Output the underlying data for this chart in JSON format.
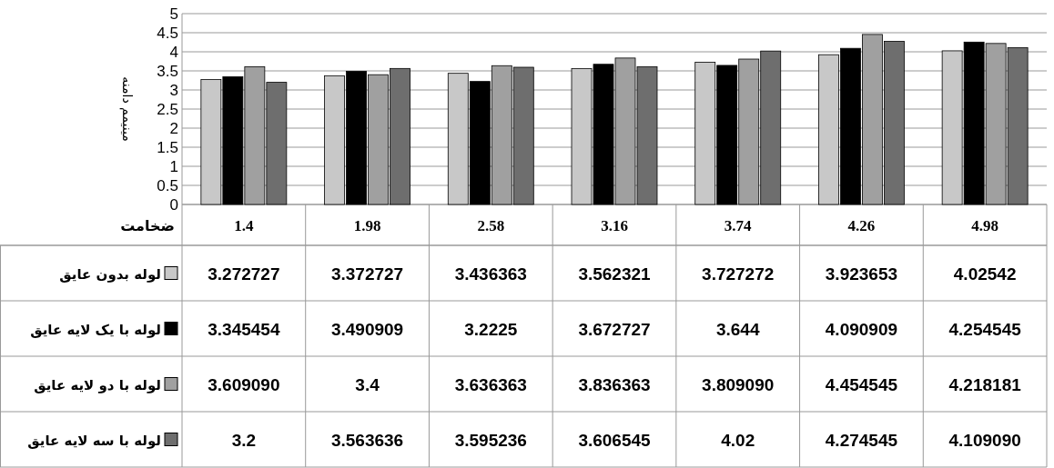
{
  "chart_data": {
    "type": "bar",
    "xlabel": "ضخامت",
    "ylabel": "مینیمم دامنه",
    "categories": [
      "1.4",
      "1.98",
      "2.58",
      "3.16",
      "3.74",
      "4.26",
      "4.98"
    ],
    "series": [
      {
        "name": "لوله بدون عایق",
        "color": "#c8c8c8",
        "values": [
          3.272727,
          3.372727,
          3.436363,
          3.562321,
          3.727272,
          3.923653,
          4.02542
        ],
        "value_labels": [
          "3.272727",
          "3.372727",
          "3.436363",
          "3.562321",
          "3.727272",
          "3.923653",
          "4.02542"
        ]
      },
      {
        "name": "لوله با یک لایه عایق",
        "color": "#000000",
        "values": [
          3.345454,
          3.490909,
          3.2225,
          3.672727,
          3.644,
          4.090909,
          4.254545
        ],
        "value_labels": [
          "3.345454",
          "3.490909",
          "3.2225",
          "3.672727",
          "3.644",
          "4.090909",
          "4.254545"
        ]
      },
      {
        "name": "لوله با دو لایه عایق",
        "color": "#a0a0a0",
        "values": [
          3.60909,
          3.4,
          3.636363,
          3.836363,
          3.80909,
          4.454545,
          4.218181
        ],
        "value_labels": [
          "3.609090",
          "3.4",
          "3.636363",
          "3.836363",
          "3.809090",
          "4.454545",
          "4.218181"
        ]
      },
      {
        "name": "لوله با سه لایه عایق",
        "color": "#6e6e6e",
        "values": [
          3.2,
          3.563636,
          3.595236,
          3.606545,
          4.02,
          4.274545,
          4.10909
        ],
        "value_labels": [
          "3.2",
          "3.563636",
          "3.595236",
          "3.606545",
          "4.02",
          "4.274545",
          "4.109090"
        ]
      }
    ],
    "ylim": [
      0,
      5
    ],
    "yticks": [
      0,
      0.5,
      1,
      1.5,
      2,
      2.5,
      3,
      3.5,
      4,
      4.5,
      5
    ],
    "grid": "y",
    "legend": "bottom left"
  }
}
